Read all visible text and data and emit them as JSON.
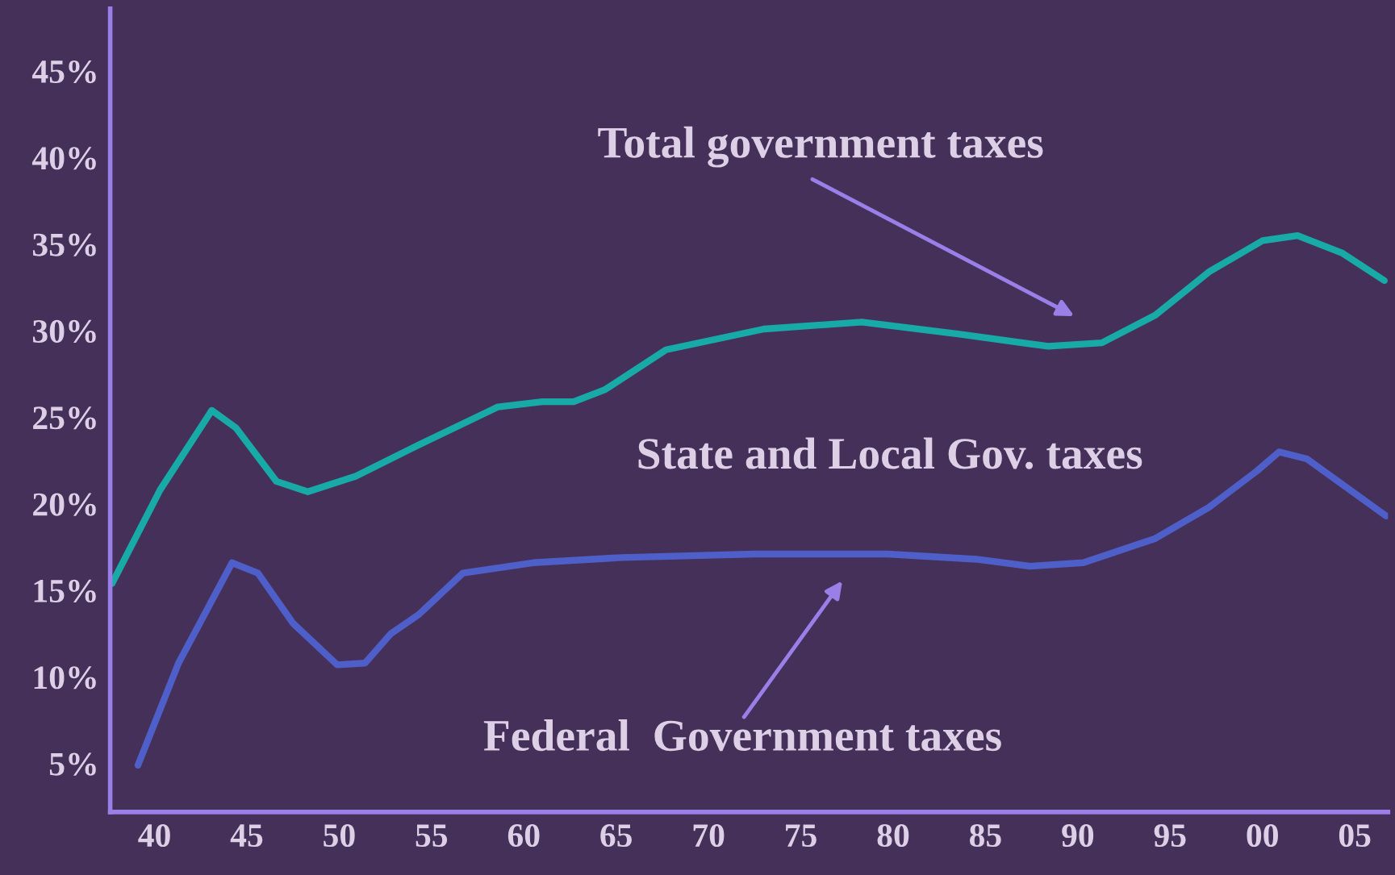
{
  "chart_data": {
    "type": "line",
    "x": [
      1937.7,
      1940.3,
      1943.1,
      1944.4,
      1946.6,
      1948.3,
      1950.9,
      1954.3,
      1958.6,
      1961.0,
      1962.7,
      1964.4,
      1967.7,
      1973.0,
      1978.3,
      1983.6,
      1988.4,
      1991.3,
      1994.2,
      1997.1,
      2000.0,
      2001.9,
      2004.3,
      2006.6
    ],
    "series": [
      {
        "color": "#17aaa6",
        "values": [
          15.4,
          20.8,
          25.4,
          24.4,
          21.3,
          20.7,
          21.6,
          23.4,
          25.6,
          25.9,
          25.9,
          26.6,
          28.9,
          30.1,
          30.5,
          29.8,
          29.1,
          29.3,
          30.9,
          33.4,
          35.2,
          35.5,
          34.5,
          32.9
        ]
      },
      {
        "color": "#4f5fc9",
        "x": [
          1939.1,
          1941.3,
          1944.2,
          1945.6,
          1947.5,
          1949.9,
          1951.4,
          1952.8,
          1954.3,
          1956.7,
          1960.5,
          1965.3,
          1972.5,
          1979.7,
          1984.5,
          1987.4,
          1990.3,
          1994.2,
          1997.1,
          1999.7,
          2000.9,
          2002.4,
          2006.7
        ],
        "values": [
          4.9,
          10.8,
          16.6,
          16.0,
          13.1,
          10.7,
          10.8,
          12.5,
          13.6,
          16.0,
          16.6,
          16.9,
          17.1,
          17.1,
          16.8,
          16.4,
          16.6,
          18.0,
          19.8,
          21.9,
          23.0,
          22.6,
          19.3
        ]
      }
    ],
    "xlim": [
      1937.6,
      2006.8
    ],
    "ylim": [
      2.2,
      48.6
    ],
    "xticks": [
      {
        "value": 1940,
        "label": "40"
      },
      {
        "value": 1945,
        "label": "45"
      },
      {
        "value": 1950,
        "label": "50"
      },
      {
        "value": 1955,
        "label": "55"
      },
      {
        "value": 1960,
        "label": "60"
      },
      {
        "value": 1965,
        "label": "65"
      },
      {
        "value": 1970,
        "label": "70"
      },
      {
        "value": 1975,
        "label": "75"
      },
      {
        "value": 1980,
        "label": "80"
      },
      {
        "value": 1985,
        "label": "85"
      },
      {
        "value": 1990,
        "label": "90"
      },
      {
        "value": 1995,
        "label": "95"
      },
      {
        "value": 2000,
        "label": "00"
      },
      {
        "value": 2005,
        "label": "05"
      }
    ],
    "yticks": [
      {
        "value": 5,
        "label": "5%"
      },
      {
        "value": 10,
        "label": "10%"
      },
      {
        "value": 15,
        "label": "15%"
      },
      {
        "value": 20,
        "label": "20%"
      },
      {
        "value": 25,
        "label": "25%"
      },
      {
        "value": 30,
        "label": "30%"
      },
      {
        "value": 35,
        "label": "35%"
      },
      {
        "value": 40,
        "label": "40%"
      },
      {
        "value": 45,
        "label": "45%"
      }
    ],
    "annotations": [
      "Total government taxes",
      "State and Local Gov. taxes",
      "Federal  Government taxes"
    ],
    "grid": false,
    "legend": false,
    "marker": "none",
    "line_style": "solid"
  }
}
